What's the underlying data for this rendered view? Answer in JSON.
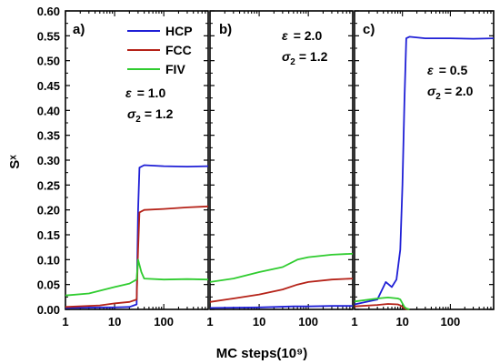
{
  "chart_data": {
    "type": "line",
    "xlabel": "MC steps(10⁹)",
    "ylabel": "Sˣ",
    "ylim": [
      0,
      0.6
    ],
    "yticks": [
      "0.00",
      "0.05",
      "0.10",
      "0.15",
      "0.20",
      "0.25",
      "0.30",
      "0.35",
      "0.40",
      "0.45",
      "0.50",
      "0.55",
      "0.60"
    ],
    "x_scale": "log",
    "xlim": [
      1,
      800
    ],
    "xticks": [
      {
        "value": 1,
        "label": "1"
      },
      {
        "value": 10,
        "label": "10"
      },
      {
        "value": 100,
        "label": "100"
      }
    ],
    "legend": {
      "placement": "top-right of panel a",
      "entries": [
        {
          "name": "HCP",
          "color": "#1f1fd6"
        },
        {
          "name": "FCC",
          "color": "#b52218"
        },
        {
          "name": "FIV",
          "color": "#2fcc2f"
        }
      ]
    },
    "panels": [
      {
        "letter": "a)",
        "epsilon_label": "ε",
        "epsilon_value": "= 1.0",
        "sigma_label": "σ",
        "sigma_sub": "2",
        "sigma_value": "= 1.2",
        "series": [
          {
            "name": "HCP",
            "x": [
              1,
              5,
              10,
              20,
              28,
              30,
              32,
              40,
              100,
              300,
              800
            ],
            "y": [
              0.003,
              0.004,
              0.004,
              0.005,
              0.01,
              0.2,
              0.285,
              0.29,
              0.288,
              0.287,
              0.288
            ]
          },
          {
            "name": "FCC",
            "x": [
              1,
              5,
              10,
              20,
              28,
              30,
              32,
              40,
              100,
              300,
              800
            ],
            "y": [
              0.005,
              0.008,
              0.012,
              0.015,
              0.02,
              0.12,
              0.195,
              0.2,
              0.202,
              0.205,
              0.207
            ]
          },
          {
            "name": "FIV",
            "x": [
              1,
              3,
              10,
              20,
              28,
              30,
              35,
              40,
              100,
              300,
              800
            ],
            "y": [
              0.028,
              0.032,
              0.045,
              0.052,
              0.06,
              0.1,
              0.075,
              0.062,
              0.06,
              0.061,
              0.06
            ]
          }
        ]
      },
      {
        "letter": "b)",
        "epsilon_label": "ε",
        "epsilon_value": "= 2.0",
        "sigma_label": "σ",
        "sigma_sub": "2",
        "sigma_value": "= 1.2",
        "series": [
          {
            "name": "HCP",
            "x": [
              1,
              10,
              50,
              100,
              300,
              800
            ],
            "y": [
              0.003,
              0.004,
              0.006,
              0.006,
              0.007,
              0.007
            ]
          },
          {
            "name": "FCC",
            "x": [
              1,
              3,
              10,
              30,
              60,
              100,
              300,
              800
            ],
            "y": [
              0.015,
              0.022,
              0.03,
              0.04,
              0.05,
              0.055,
              0.06,
              0.062
            ]
          },
          {
            "name": "FIV",
            "x": [
              1,
              3,
              10,
              30,
              60,
              100,
              300,
              800
            ],
            "y": [
              0.055,
              0.062,
              0.075,
              0.085,
              0.1,
              0.105,
              0.11,
              0.112
            ]
          }
        ]
      },
      {
        "letter": "c)",
        "epsilon_label": "ε",
        "epsilon_value": "= 0.5",
        "sigma_label": "σ",
        "sigma_sub": "2",
        "sigma_value": "= 2.0",
        "series": [
          {
            "name": "HCP",
            "x": [
              1,
              3,
              4.5,
              6,
              7.5,
              9,
              10,
              11,
              12,
              14,
              30,
              100,
              300,
              800
            ],
            "y": [
              0.01,
              0.02,
              0.055,
              0.045,
              0.06,
              0.12,
              0.25,
              0.42,
              0.545,
              0.548,
              0.545,
              0.545,
              0.544,
              0.545
            ]
          },
          {
            "name": "FCC",
            "x": [
              1,
              3,
              5,
              8,
              9,
              10,
              11,
              12,
              14
            ],
            "y": [
              0.006,
              0.009,
              0.011,
              0.01,
              0.008,
              0.005,
              0.002,
              0.001,
              0.0
            ]
          },
          {
            "name": "FIV",
            "x": [
              1,
              3,
              5,
              8,
              9,
              10,
              11,
              12,
              14
            ],
            "y": [
              0.016,
              0.022,
              0.024,
              0.022,
              0.02,
              0.012,
              0.005,
              0.002,
              0.0
            ]
          }
        ]
      }
    ]
  }
}
